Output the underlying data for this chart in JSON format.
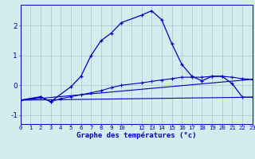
{
  "background_color": "#d4ecee",
  "grid_color": "#a8cdd4",
  "line_color": "#0000bb",
  "title": "Graphe des températures (°c)",
  "xlim": [
    0,
    23
  ],
  "ylim": [
    -1.3,
    2.7
  ],
  "yticks": [
    -1,
    0,
    1,
    2
  ],
  "xtick_labels": [
    "0",
    "1",
    "2",
    "3",
    "4",
    "5",
    "6",
    "7",
    "8",
    "9",
    "10",
    "",
    "12",
    "13",
    "14",
    "15",
    "16",
    "17",
    "18",
    "19",
    "20",
    "21",
    "22",
    "23"
  ],
  "series1_x": [
    0,
    2,
    3,
    5,
    6,
    7,
    8,
    9,
    10,
    12,
    13,
    14,
    15,
    16,
    17,
    18,
    19,
    20,
    21,
    22,
    23
  ],
  "series1_y": [
    -0.5,
    -0.4,
    -0.55,
    -0.05,
    0.3,
    1.0,
    1.5,
    1.75,
    2.1,
    2.35,
    2.5,
    2.2,
    1.4,
    0.7,
    0.3,
    0.15,
    0.3,
    0.3,
    0.05,
    -0.4,
    -0.4
  ],
  "series2_x": [
    0,
    2,
    3,
    4,
    5,
    6,
    7,
    8,
    9,
    10,
    12,
    13,
    14,
    15,
    16,
    17,
    18,
    19,
    20,
    21,
    22,
    23
  ],
  "series2_y": [
    -0.5,
    -0.38,
    -0.55,
    -0.45,
    -0.38,
    -0.32,
    -0.25,
    -0.18,
    -0.08,
    0.0,
    0.08,
    0.13,
    0.18,
    0.22,
    0.27,
    0.27,
    0.27,
    0.3,
    0.3,
    0.27,
    0.22,
    0.2
  ],
  "series3_x": [
    0,
    23
  ],
  "series3_y": [
    -0.5,
    -0.4
  ],
  "series4_x": [
    0,
    23
  ],
  "series4_y": [
    -0.5,
    0.2
  ]
}
